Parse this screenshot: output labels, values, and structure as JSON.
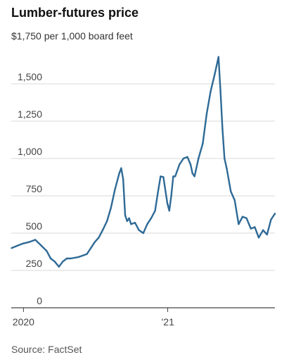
{
  "chart_data": {
    "type": "line",
    "title": "Lumber-futures price",
    "subtitle": "$1,750 per 1,000 board feet",
    "source": "Source: FactSet",
    "ylim": [
      0,
      1750
    ],
    "yticks": [
      0,
      250,
      500,
      750,
      1000,
      1250,
      1500
    ],
    "ytick_labels": [
      "0",
      "250",
      "500",
      "750",
      "1,000",
      "1,250",
      "1,500"
    ],
    "xticks": [
      "2020-01-01",
      "2021-01-01"
    ],
    "xtick_labels": [
      "2020",
      "’21"
    ],
    "xlim": [
      "2019-12-01",
      "2021-09-30"
    ],
    "grid": true,
    "color": "#2e6a96",
    "series": [
      {
        "x": [
          "2019-12-02",
          "2019-12-16",
          "2019-12-31",
          "2020-01-15",
          "2020-01-31",
          "2020-02-14",
          "2020-02-29",
          "2020-03-10",
          "2020-03-20",
          "2020-03-31",
          "2020-04-10",
          "2020-04-20",
          "2020-04-30",
          "2020-05-10",
          "2020-05-20",
          "2020-05-31",
          "2020-06-10",
          "2020-06-20",
          "2020-06-30",
          "2020-07-10",
          "2020-07-20",
          "2020-07-31",
          "2020-08-10",
          "2020-08-20",
          "2020-08-31",
          "2020-09-05",
          "2020-09-10",
          "2020-09-15",
          "2020-09-20",
          "2020-09-25",
          "2020-09-30",
          "2020-10-10",
          "2020-10-20",
          "2020-10-31",
          "2020-11-10",
          "2020-11-20",
          "2020-11-30",
          "2020-12-07",
          "2020-12-14",
          "2020-12-21",
          "2020-12-31",
          "2021-01-05",
          "2021-01-10",
          "2021-01-15",
          "2021-01-20",
          "2021-01-31",
          "2021-02-10",
          "2021-02-20",
          "2021-02-28",
          "2021-03-05",
          "2021-03-10",
          "2021-03-20",
          "2021-03-31",
          "2021-04-10",
          "2021-04-20",
          "2021-04-30",
          "2021-05-05",
          "2021-05-10",
          "2021-05-15",
          "2021-05-20",
          "2021-05-25",
          "2021-05-31",
          "2021-06-10",
          "2021-06-20",
          "2021-06-30",
          "2021-07-10",
          "2021-07-20",
          "2021-07-31",
          "2021-08-10",
          "2021-08-20",
          "2021-08-31",
          "2021-09-10",
          "2021-09-20",
          "2021-09-30"
        ],
        "values": [
          400,
          415,
          430,
          440,
          455,
          420,
          380,
          330,
          310,
          275,
          310,
          330,
          330,
          335,
          340,
          350,
          360,
          400,
          440,
          470,
          520,
          580,
          670,
          790,
          900,
          935,
          860,
          620,
          580,
          600,
          560,
          570,
          520,
          500,
          560,
          600,
          650,
          770,
          880,
          875,
          700,
          650,
          750,
          880,
          880,
          960,
          1000,
          1010,
          960,
          900,
          880,
          1000,
          1100,
          1300,
          1450,
          1560,
          1620,
          1680,
          1450,
          1200,
          1000,
          930,
          780,
          720,
          560,
          610,
          600,
          530,
          540,
          470,
          520,
          490,
          590,
          630
        ]
      }
    ]
  }
}
